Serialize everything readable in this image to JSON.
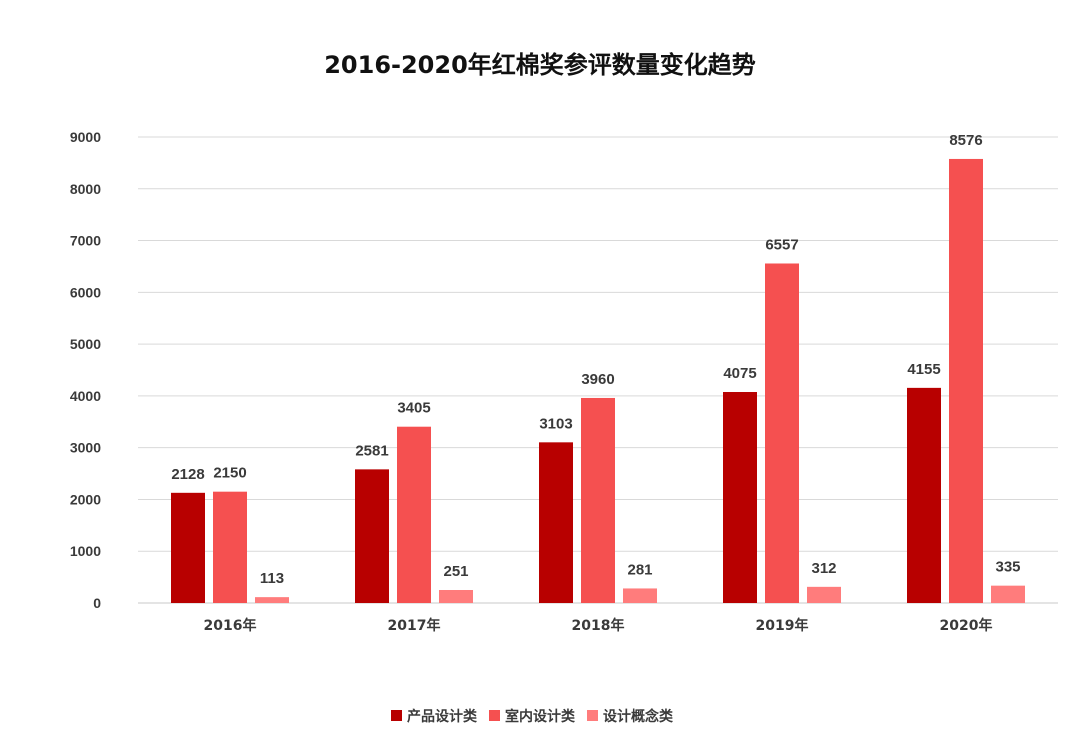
{
  "chart_data": {
    "type": "bar",
    "title": "2016-2020年红棉奖参评数量变化趋势",
    "categories": [
      "2016年",
      "2017年",
      "2018年",
      "2019年",
      "2020年"
    ],
    "series": [
      {
        "name": "产品设计类",
        "color": "#b80000",
        "values": [
          2128,
          2581,
          3103,
          4075,
          4155
        ]
      },
      {
        "name": "室内设计类",
        "color": "#f55050",
        "values": [
          2150,
          3405,
          3960,
          6557,
          8576
        ]
      },
      {
        "name": "设计概念类",
        "color": "#ff7c7c",
        "values": [
          113,
          251,
          281,
          312,
          335
        ]
      }
    ],
    "yticks": [
      0,
      1000,
      2000,
      3000,
      4000,
      5000,
      6000,
      7000,
      8000,
      9000
    ],
    "ylim": [
      0,
      9000
    ],
    "xlabel": "",
    "ylabel": "",
    "grid": true,
    "legend_position": "bottom",
    "data_labels": true
  }
}
